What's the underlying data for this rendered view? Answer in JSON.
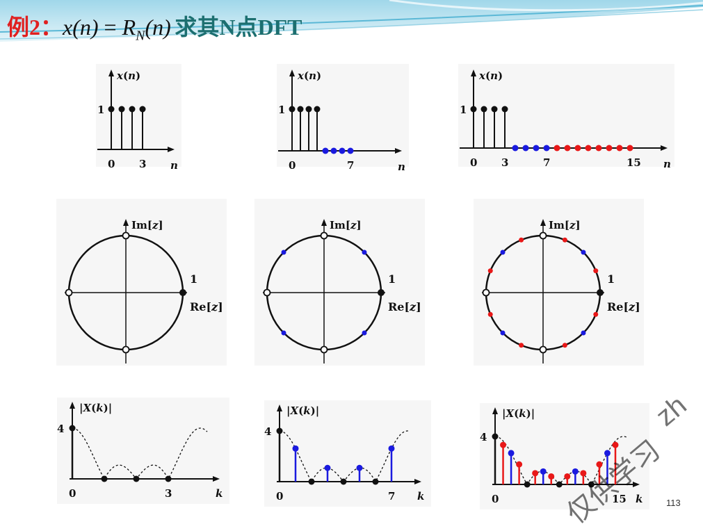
{
  "title": {
    "example_label": "例2：",
    "equation": "x(n) = R_N(n)",
    "eq_parts": {
      "x": "x",
      "n": "n",
      "eq": "=",
      "R": "R",
      "N": "N"
    },
    "suffix": "求其N点DFT"
  },
  "page_number": "113",
  "watermark": {
    "line1": "仅供学习",
    "line2": "zh"
  },
  "colors": {
    "title_red": "#e02020",
    "title_teal": "#1c6f70",
    "blue": "#1a1adf",
    "red": "#e81818",
    "black": "#111111"
  },
  "sequences": [
    {
      "ylabel": "x(n)",
      "xlabel": "n",
      "ytick": "1",
      "xticks": [
        "0",
        "3"
      ],
      "N": 4,
      "values": [
        1,
        1,
        1,
        1
      ]
    },
    {
      "ylabel": "x(n)",
      "xlabel": "n",
      "ytick": "1",
      "xticks": [
        "0",
        "7"
      ],
      "N": 8,
      "values": [
        1,
        1,
        1,
        1,
        0,
        0,
        0,
        0
      ]
    },
    {
      "ylabel": "x(n)",
      "xlabel": "n",
      "ytick": "1",
      "xticks": [
        "0",
        "3",
        "7",
        "15"
      ],
      "N": 16,
      "values": [
        1,
        1,
        1,
        1,
        0,
        0,
        0,
        0,
        0,
        0,
        0,
        0,
        0,
        0,
        0,
        0
      ]
    }
  ],
  "zplanes": [
    {
      "im_label": "Im[z]",
      "re_label": "Re[z]",
      "one_label": "1",
      "N": 4
    },
    {
      "im_label": "Im[z]",
      "re_label": "Re[z]",
      "one_label": "1",
      "N": 8
    },
    {
      "im_label": "Im[z]",
      "re_label": "Re[z]",
      "one_label": "1",
      "N": 16
    }
  ],
  "chart_data": [
    {
      "type": "scatter",
      "title": "|X(k)|",
      "ylabel": "|X(k)|",
      "xlabel": "k",
      "ytick": "4",
      "xticks": [
        "0",
        "3"
      ],
      "N": 4,
      "k": [
        0,
        1,
        2,
        3
      ],
      "values": [
        4,
        0,
        0,
        0
      ]
    },
    {
      "type": "scatter",
      "title": "|X(k)|",
      "ylabel": "|X(k)|",
      "xlabel": "k",
      "ytick": "4",
      "xticks": [
        "0",
        "7"
      ],
      "N": 8,
      "k": [
        0,
        1,
        2,
        3,
        4,
        5,
        6,
        7
      ],
      "values": [
        4,
        2.613,
        0,
        1.082,
        0,
        1.082,
        0,
        2.613
      ]
    },
    {
      "type": "scatter",
      "title": "|X(k)|",
      "ylabel": "|X(k)|",
      "xlabel": "k",
      "ytick": "4",
      "xticks": [
        "0",
        "15"
      ],
      "N": 16,
      "k": [
        0,
        1,
        2,
        3,
        4,
        5,
        6,
        7,
        8,
        9,
        10,
        11,
        12,
        13,
        14,
        15
      ],
      "values": [
        4,
        3.296,
        2.613,
        1.674,
        0,
        0.938,
        1.082,
        0.667,
        0,
        0.667,
        1.082,
        0.938,
        0,
        1.674,
        2.613,
        3.296
      ]
    }
  ]
}
